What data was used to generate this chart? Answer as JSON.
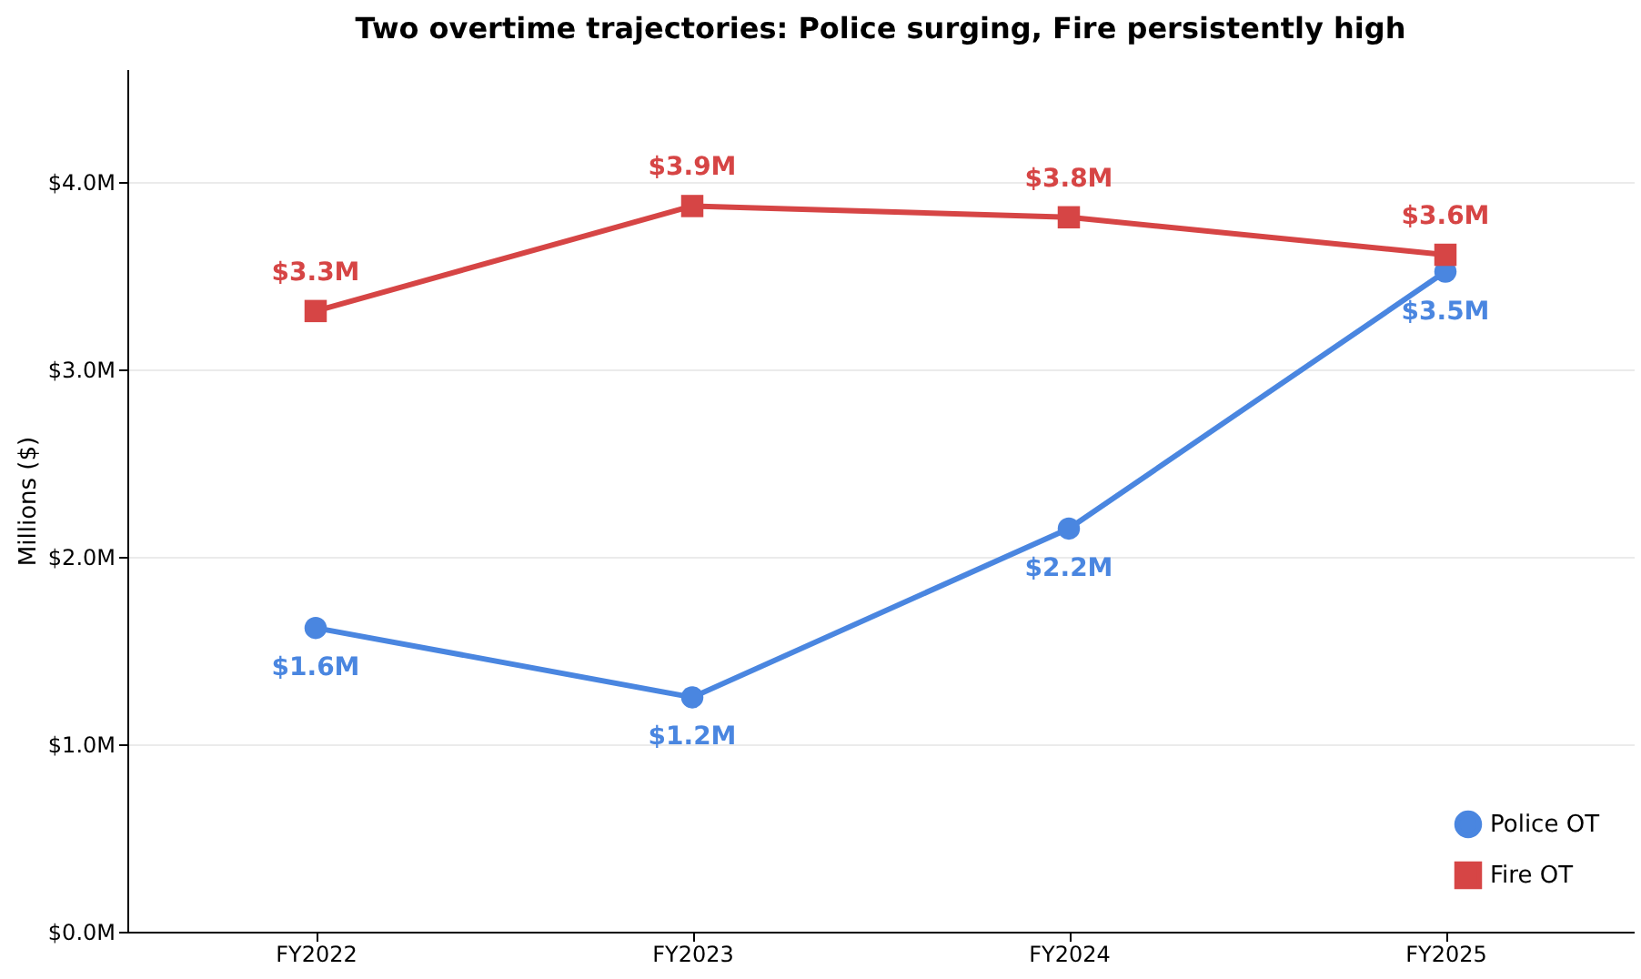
{
  "chart_data": {
    "type": "line",
    "title": "Two overtime trajectories: Police surging, Fire persistently high",
    "ylabel": "Millions ($)",
    "categories": [
      "FY2022",
      "FY2023",
      "FY2024",
      "FY2025"
    ],
    "series": [
      {
        "name": "Police OT",
        "color": "#4a86e0",
        "marker": "circle",
        "values": [
          1.62,
          1.25,
          2.15,
          3.52
        ],
        "value_labels": [
          "$1.6M",
          "$1.2M",
          "$2.2M",
          "$3.5M"
        ]
      },
      {
        "name": "Fire OT",
        "color": "#d64545",
        "marker": "square",
        "values": [
          3.31,
          3.87,
          3.81,
          3.61
        ],
        "value_labels": [
          "$3.3M",
          "$3.9M",
          "$3.8M",
          "$3.6M"
        ]
      }
    ],
    "ylim": [
      0,
      4.6
    ],
    "yticks": [
      {
        "value": 0,
        "label": "$0.0M"
      },
      {
        "value": 1,
        "label": "$1.0M"
      },
      {
        "value": 2,
        "label": "$2.0M"
      },
      {
        "value": 3,
        "label": "$3.0M"
      },
      {
        "value": 4,
        "label": "$4.0M"
      }
    ],
    "grid": "y",
    "legend": "bottom right",
    "line_style": "solid"
  }
}
